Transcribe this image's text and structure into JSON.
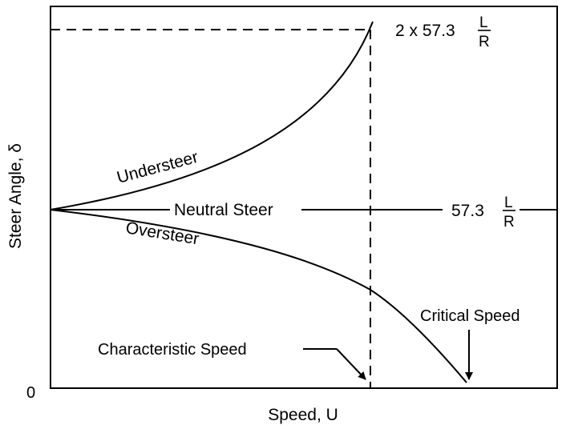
{
  "axes": {
    "x_label": "Speed, U",
    "y_label": "Steer Angle, δ",
    "y_origin_label": "0"
  },
  "curves": {
    "understeer": "Understeer",
    "neutral": "Neutral Steer",
    "oversteer": "Oversteer"
  },
  "annotations": {
    "upper_value_prefix": "2 x 57.3",
    "neutral_value_prefix": "57.3",
    "fraction_numerator": "L",
    "fraction_denominator": "R",
    "characteristic_speed": "Characteristic Speed",
    "critical_speed": "Critical Speed"
  }
}
